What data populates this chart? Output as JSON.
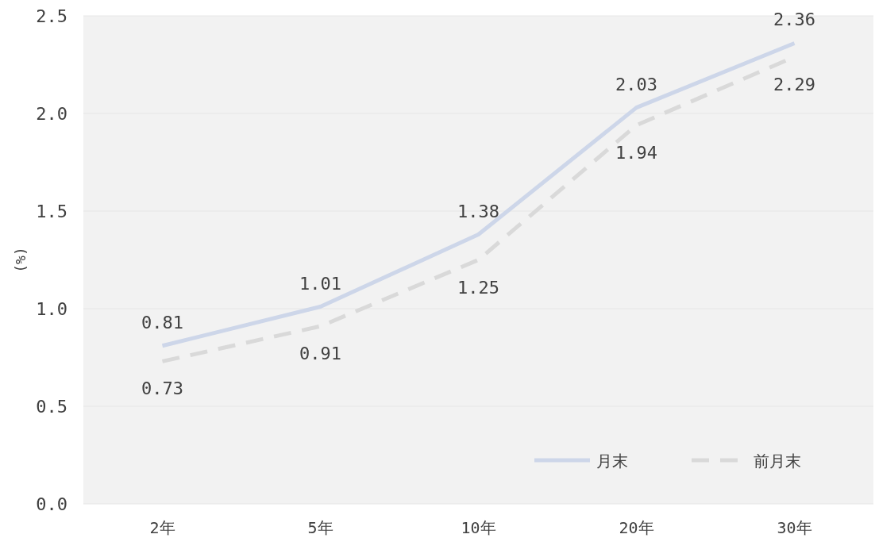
{
  "chart_data": {
    "type": "line",
    "ylabel": "(%)",
    "categories": [
      "2年",
      "5年",
      "10年",
      "20年",
      "30年"
    ],
    "series": [
      {
        "name": "月末",
        "color": "#cdd6e9",
        "values": [
          0.81,
          1.01,
          1.38,
          2.03,
          2.36
        ],
        "line_style": "solid"
      },
      {
        "name": "前月末",
        "color": "#d9d9d9",
        "values": [
          0.73,
          0.91,
          1.25,
          1.94,
          2.29
        ],
        "line_style": "dashed"
      }
    ],
    "ylim": [
      0,
      2.5
    ],
    "yticks": [
      {
        "value": 0,
        "label": "0.0"
      },
      {
        "value": 0.5,
        "label": "0.5"
      },
      {
        "value": 1,
        "label": "1.0"
      },
      {
        "value": 1.5,
        "label": "1.5"
      },
      {
        "value": 2,
        "label": "2.0"
      },
      {
        "value": 2.5,
        "label": "2.5"
      }
    ],
    "grid": "y",
    "legend": "bottom right",
    "data_labels": true
  }
}
